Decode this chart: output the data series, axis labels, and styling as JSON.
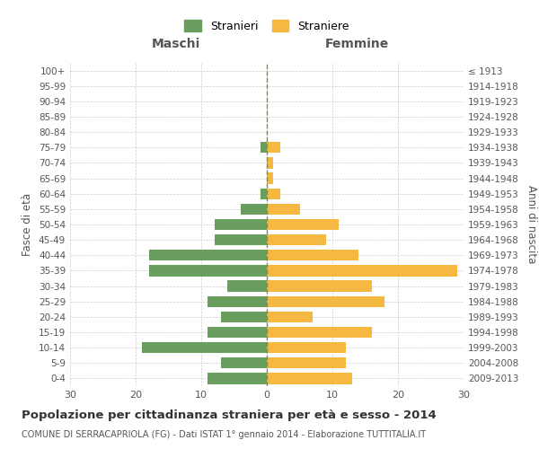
{
  "age_groups": [
    "0-4",
    "5-9",
    "10-14",
    "15-19",
    "20-24",
    "25-29",
    "30-34",
    "35-39",
    "40-44",
    "45-49",
    "50-54",
    "55-59",
    "60-64",
    "65-69",
    "70-74",
    "75-79",
    "80-84",
    "85-89",
    "90-94",
    "95-99",
    "100+"
  ],
  "birth_years": [
    "2009-2013",
    "2004-2008",
    "1999-2003",
    "1994-1998",
    "1989-1993",
    "1984-1988",
    "1979-1983",
    "1974-1978",
    "1969-1973",
    "1964-1968",
    "1959-1963",
    "1954-1958",
    "1949-1953",
    "1944-1948",
    "1939-1943",
    "1934-1938",
    "1929-1933",
    "1924-1928",
    "1919-1923",
    "1914-1918",
    "≤ 1913"
  ],
  "males": [
    9,
    7,
    19,
    9,
    7,
    9,
    6,
    18,
    18,
    8,
    8,
    4,
    1,
    0,
    0,
    1,
    0,
    0,
    0,
    0,
    0
  ],
  "females": [
    13,
    12,
    12,
    16,
    7,
    18,
    16,
    29,
    14,
    9,
    11,
    5,
    2,
    1,
    1,
    2,
    0,
    0,
    0,
    0,
    0
  ],
  "male_color": "#6a9e5e",
  "female_color": "#f5b942",
  "bg_color": "#ffffff",
  "grid_color": "#cccccc",
  "title": "Popolazione per cittadinanza straniera per età e sesso - 2014",
  "subtitle": "COMUNE DI SERRACAPRIOLA (FG) - Dati ISTAT 1° gennaio 2014 - Elaborazione TUTTITALIA.IT",
  "xlabel_left": "Maschi",
  "xlabel_right": "Femmine",
  "ylabel_left": "Fasce di età",
  "ylabel_right": "Anni di nascita",
  "legend_male": "Stranieri",
  "legend_female": "Straniere",
  "xlim": 30,
  "dashed_line_color": "#888844"
}
